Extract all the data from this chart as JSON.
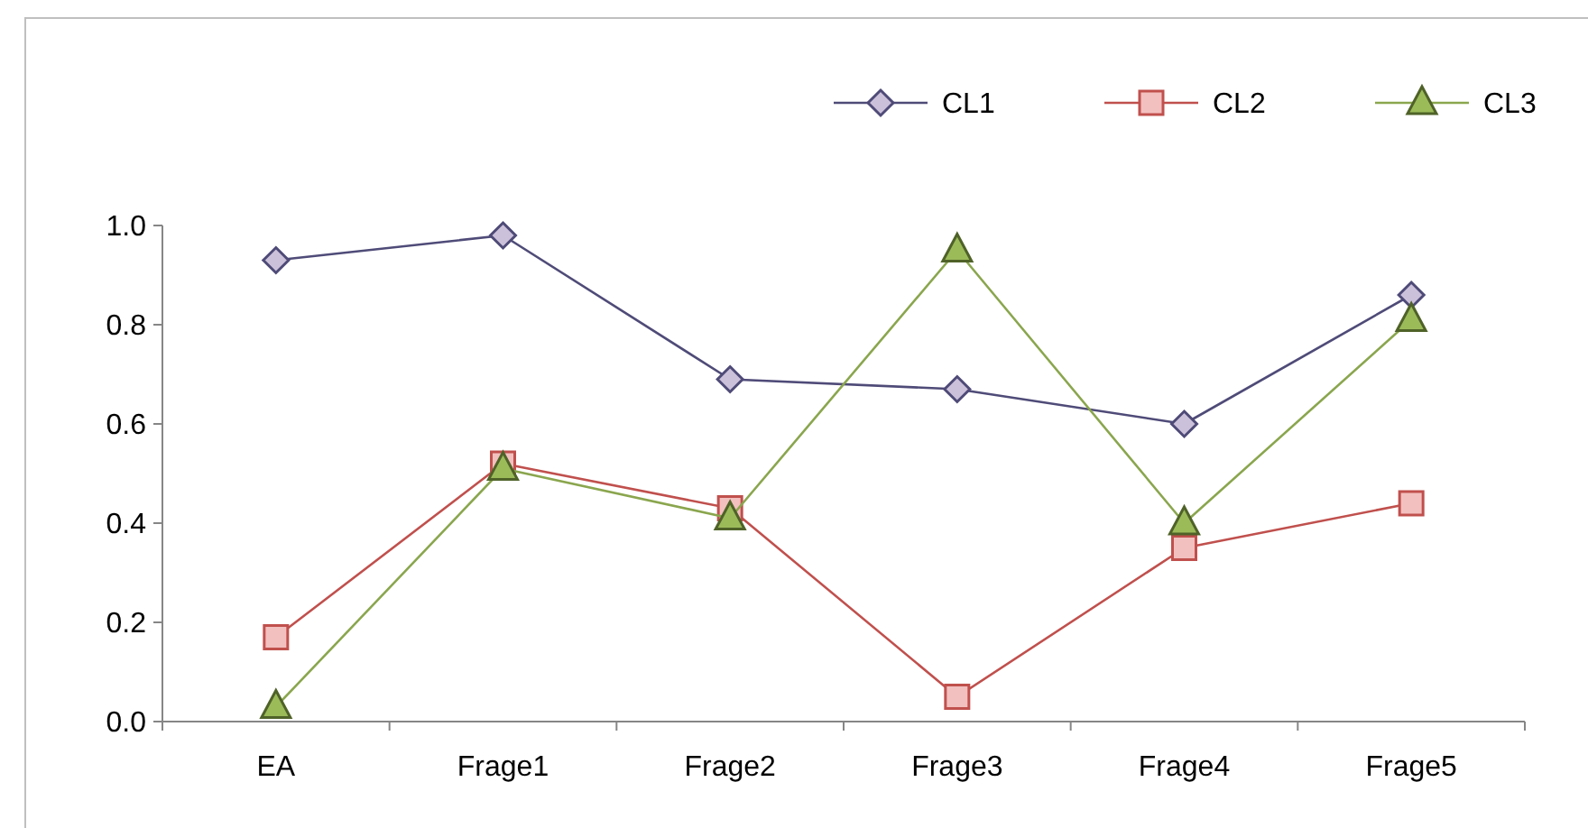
{
  "chart_data": {
    "type": "line",
    "categories": [
      "EA",
      "Frage1",
      "Frage2",
      "Frage3",
      "Frage4",
      "Frage5"
    ],
    "series": [
      {
        "name": "CL1",
        "color": "#4f4b78",
        "marker": "diamond",
        "values": [
          0.93,
          0.98,
          0.69,
          0.67,
          0.6,
          0.86
        ]
      },
      {
        "name": "CL2",
        "color": "#c0504d",
        "marker": "square",
        "values": [
          0.17,
          0.52,
          0.43,
          0.05,
          0.35,
          0.44
        ]
      },
      {
        "name": "CL3",
        "color": "#8aa64e",
        "marker": "triangle",
        "values": [
          0.03,
          0.51,
          0.41,
          0.95,
          0.4,
          0.81
        ]
      }
    ],
    "ylim": [
      0,
      1
    ],
    "yticks": [
      {
        "value": 0,
        "label": "0.0"
      },
      {
        "value": 0.2,
        "label": "0.2"
      },
      {
        "value": 0.4,
        "label": "0.4"
      },
      {
        "value": 0.6,
        "label": "0.6"
      },
      {
        "value": 0.8,
        "label": "0.8"
      },
      {
        "value": 1,
        "label": "1.0"
      }
    ],
    "legend": "top right",
    "grid": false,
    "line_style": "solid"
  }
}
